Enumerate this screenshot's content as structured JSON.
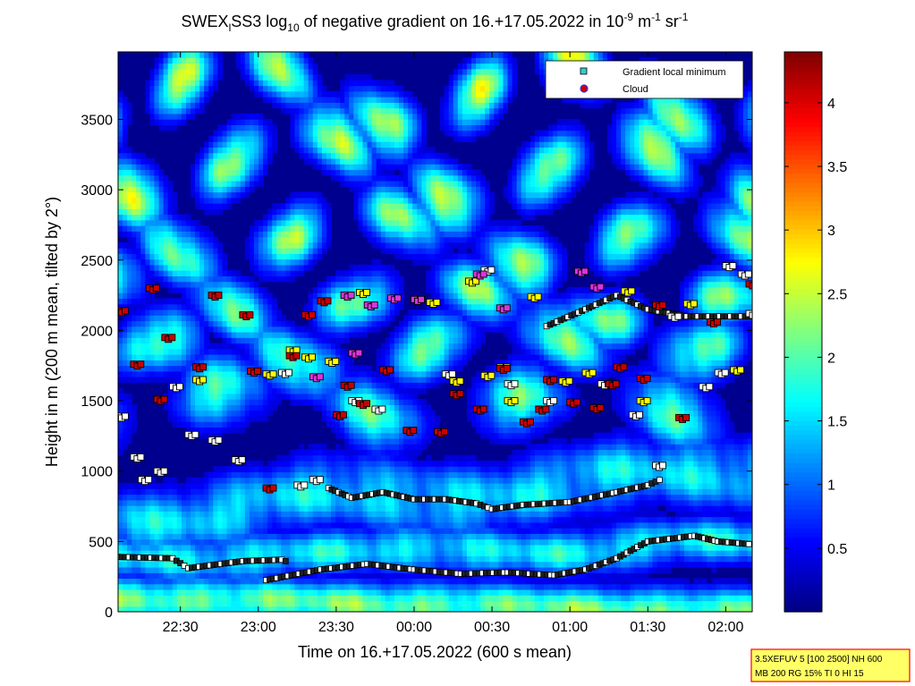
{
  "chart_data": {
    "type": "heatmap",
    "title_parts": {
      "a": "SWEX",
      "a_sub": "l",
      "b": "SS3 log",
      "b_sub": "10",
      "c": " of negative gradient on 16.+17.05.2022 in 10",
      "c_sup": "-9",
      "d": " m",
      "d_sup": "-1",
      "e": " sr",
      "e_sup": "-1"
    },
    "xlabel": "Time on 16.+17.05.2022 (600 s mean)",
    "ylabel": "Height in m (200 m mean, tilted by 2°)",
    "x_time_hours": [
      22.1,
      26.17
    ],
    "xticks": [
      {
        "t": 22.5,
        "label": "22:30"
      },
      {
        "t": 23.0,
        "label": "23:00"
      },
      {
        "t": 23.5,
        "label": "23:30"
      },
      {
        "t": 24.0,
        "label": "00:00"
      },
      {
        "t": 24.5,
        "label": "00:30"
      },
      {
        "t": 25.0,
        "label": "01:00"
      },
      {
        "t": 25.5,
        "label": "01:30"
      },
      {
        "t": 26.0,
        "label": "02:00"
      }
    ],
    "ylim": [
      0,
      3980
    ],
    "yticks": [
      {
        "v": 0,
        "label": "0"
      },
      {
        "v": 500,
        "label": "500"
      },
      {
        "v": 1000,
        "label": "1000"
      },
      {
        "v": 1500,
        "label": "1500"
      },
      {
        "v": 2000,
        "label": "2000"
      },
      {
        "v": 2500,
        "label": "2500"
      },
      {
        "v": 3000,
        "label": "3000"
      },
      {
        "v": 3500,
        "label": "3500"
      }
    ],
    "colorbar": {
      "range": [
        0,
        4.4
      ],
      "ticks": [
        {
          "v": 0.5,
          "label": "0.5"
        },
        {
          "v": 1,
          "label": "1"
        },
        {
          "v": 1.5,
          "label": "1.5"
        },
        {
          "v": 2,
          "label": "2"
        },
        {
          "v": 2.5,
          "label": "2.5"
        },
        {
          "v": 3,
          "label": "3"
        },
        {
          "v": 3.5,
          "label": "3.5"
        },
        {
          "v": 4,
          "label": "4"
        }
      ],
      "colormap": "jet"
    },
    "layers": [
      {
        "h0": 100,
        "h1": 0,
        "amp0": 0,
        "amp1": 0,
        "w": 160,
        "val": 2.05,
        "seed": 1
      },
      {
        "h0": 390,
        "h1": 480,
        "amp0": 20,
        "amp1": 40,
        "w": 170,
        "val": 1.55,
        "seed": 2
      },
      {
        "h0": 680,
        "h1": 1000,
        "amp0": 80,
        "amp1": 60,
        "w": 260,
        "val": 1.45,
        "seed": 3
      },
      {
        "h0": 1500,
        "h1": 1450,
        "amp0": 130,
        "amp1": 90,
        "w": 250,
        "val": 1.85,
        "seed": 4
      },
      {
        "h0": 1800,
        "h1": 1950,
        "amp0": 150,
        "amp1": 120,
        "w": 220,
        "val": 2.1,
        "seed": 5
      },
      {
        "h0": 2250,
        "h1": 2150,
        "amp0": 150,
        "amp1": 100,
        "w": 200,
        "val": 2.15,
        "seed": 6
      },
      {
        "h0": 2700,
        "h1": 2600,
        "amp0": 200,
        "amp1": 160,
        "w": 220,
        "val": 2.25,
        "seed": 7
      },
      {
        "h0": 3200,
        "h1": 3100,
        "amp0": 260,
        "amp1": 220,
        "w": 230,
        "val": 2.45,
        "seed": 8
      },
      {
        "h0": 3700,
        "h1": 3700,
        "amp0": 250,
        "amp1": 250,
        "w": 230,
        "val": 2.5,
        "seed": 9
      }
    ],
    "minimum_lines": [
      {
        "name": "low-inversion-a",
        "points": [
          [
            22.1,
            390
          ],
          [
            22.45,
            380
          ],
          [
            22.55,
            310
          ],
          [
            22.9,
            360
          ],
          [
            23.15,
            370
          ],
          [
            23.2,
            350
          ]
        ]
      },
      {
        "name": "low-inversion-b",
        "points": [
          [
            23.05,
            225
          ],
          [
            23.4,
            300
          ],
          [
            23.7,
            340
          ],
          [
            24.0,
            300
          ],
          [
            24.3,
            270
          ],
          [
            24.6,
            280
          ],
          [
            24.9,
            260
          ],
          [
            25.1,
            300
          ],
          [
            25.3,
            380
          ],
          [
            25.5,
            500
          ],
          [
            25.8,
            540
          ],
          [
            25.95,
            500
          ],
          [
            26.17,
            480
          ]
        ]
      },
      {
        "name": "mid-layer",
        "points": [
          [
            23.45,
            880
          ],
          [
            23.6,
            810
          ],
          [
            23.8,
            850
          ],
          [
            24.0,
            800
          ],
          [
            24.2,
            800
          ],
          [
            24.4,
            770
          ],
          [
            24.5,
            730
          ],
          [
            24.7,
            760
          ],
          [
            25.0,
            780
          ],
          [
            25.3,
            850
          ],
          [
            25.5,
            900
          ],
          [
            25.6,
            950
          ]
        ]
      },
      {
        "name": "upper-layer",
        "points": [
          [
            24.85,
            2030
          ],
          [
            25.1,
            2150
          ],
          [
            25.3,
            2250
          ],
          [
            25.5,
            2150
          ],
          [
            25.75,
            2100
          ],
          [
            26.17,
            2100
          ]
        ]
      }
    ],
    "clouds_yellow": [
      [
        23.05,
        1690
      ],
      [
        23.2,
        1860
      ],
      [
        23.45,
        1780
      ],
      [
        23.65,
        2270
      ],
      [
        24.1,
        2200
      ],
      [
        24.25,
        1640
      ],
      [
        24.35,
        2350
      ],
      [
        24.45,
        1680
      ],
      [
        24.6,
        1500
      ],
      [
        24.75,
        2240
      ],
      [
        24.95,
        1640
      ],
      [
        25.1,
        1700
      ],
      [
        25.35,
        2280
      ],
      [
        25.45,
        1500
      ],
      [
        25.75,
        2190
      ],
      [
        26.05,
        1720
      ],
      [
        22.6,
        1650
      ],
      [
        23.3,
        1810
      ],
      [
        24.55,
        1740
      ]
    ],
    "clouds_magenta": [
      [
        23.55,
        2250
      ],
      [
        23.7,
        2180
      ],
      [
        23.85,
        2230
      ],
      [
        24.4,
        2400
      ],
      [
        24.55,
        2160
      ],
      [
        25.05,
        2420
      ],
      [
        25.15,
        2310
      ],
      [
        23.35,
        1670
      ],
      [
        23.6,
        1840
      ],
      [
        24.0,
        2220
      ]
    ],
    "clouds_red": [
      [
        22.1,
        2140
      ],
      [
        22.2,
        1760
      ],
      [
        22.3,
        2300
      ],
      [
        22.35,
        1510
      ],
      [
        22.4,
        1950
      ],
      [
        22.6,
        1740
      ],
      [
        22.7,
        2250
      ],
      [
        22.9,
        2110
      ],
      [
        22.95,
        1710
      ],
      [
        23.05,
        880
      ],
      [
        23.2,
        1820
      ],
      [
        23.3,
        2110
      ],
      [
        23.4,
        2210
      ],
      [
        23.5,
        1400
      ],
      [
        23.55,
        1610
      ],
      [
        23.65,
        1480
      ],
      [
        23.8,
        1720
      ],
      [
        23.95,
        1290
      ],
      [
        24.15,
        1280
      ],
      [
        24.25,
        1550
      ],
      [
        24.4,
        1440
      ],
      [
        24.55,
        1730
      ],
      [
        24.7,
        1350
      ],
      [
        24.8,
        1440
      ],
      [
        25.0,
        1490
      ],
      [
        25.15,
        1450
      ],
      [
        25.3,
        1740
      ],
      [
        25.45,
        1660
      ],
      [
        25.55,
        2180
      ],
      [
        25.7,
        1380
      ],
      [
        25.9,
        2060
      ],
      [
        26.15,
        2330
      ],
      [
        24.85,
        1650
      ],
      [
        25.25,
        1620
      ]
    ],
    "clouds_white": [
      [
        22.1,
        1390
      ],
      [
        22.2,
        1100
      ],
      [
        22.25,
        940
      ],
      [
        22.35,
        1000
      ],
      [
        22.45,
        1600
      ],
      [
        22.55,
        1260
      ],
      [
        22.7,
        1220
      ],
      [
        22.85,
        1080
      ],
      [
        23.15,
        1700
      ],
      [
        23.25,
        900
      ],
      [
        23.35,
        940
      ],
      [
        23.6,
        1500
      ],
      [
        23.75,
        1440
      ],
      [
        24.2,
        1690
      ],
      [
        24.45,
        2430
      ],
      [
        24.6,
        1620
      ],
      [
        24.85,
        1500
      ],
      [
        25.2,
        1620
      ],
      [
        25.4,
        1400
      ],
      [
        25.55,
        1040
      ],
      [
        25.65,
        2100
      ],
      [
        25.85,
        1600
      ],
      [
        26.1,
        2400
      ],
      [
        26.15,
        2120
      ],
      [
        25.95,
        1700
      ],
      [
        26.0,
        2460
      ]
    ],
    "legend": {
      "items": [
        {
          "label": "Gradient local minimum",
          "marker": "square",
          "color": "#33cccc"
        },
        {
          "label": "Cloud",
          "marker": "circle",
          "color": "#cc0000",
          "edge": "#3333ff"
        }
      ]
    },
    "info_box": {
      "lines": [
        "3.5XEFUV 5 [100 2500] NH 600",
        "MB 200 RG 15% TI 0 HI 15"
      ],
      "border_color": "#ff0000",
      "fill_color": "#ffff66"
    }
  }
}
